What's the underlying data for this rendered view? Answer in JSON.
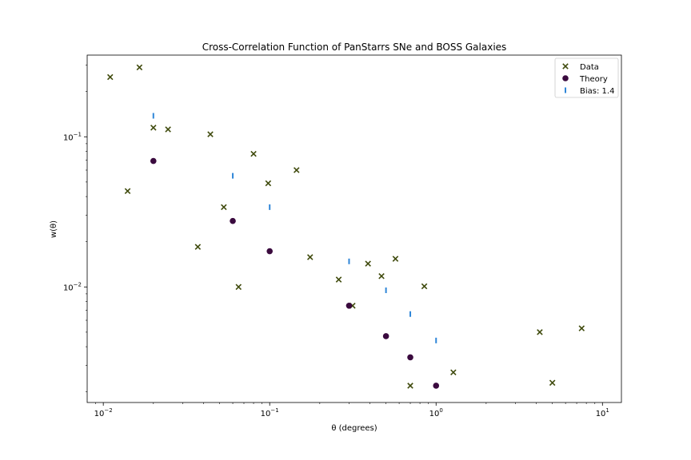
{
  "chart_data": {
    "type": "scatter",
    "title": "Cross-Correlation Function of PanStarrs SNe and BOSS Galaxies",
    "xlabel": "θ (degrees)",
    "ylabel": "w(θ)",
    "xscale": "log",
    "yscale": "log",
    "xlim": [
      0.008,
      13
    ],
    "ylim": [
      0.0017,
      0.35
    ],
    "grid": false,
    "legend_position": "top-right",
    "x_ticks": [
      {
        "value": 0.01,
        "base": "10",
        "exp": "−2"
      },
      {
        "value": 0.1,
        "base": "10",
        "exp": "−1"
      },
      {
        "value": 1,
        "base": "10",
        "exp": "0"
      },
      {
        "value": 10,
        "base": "10",
        "exp": "1"
      }
    ],
    "y_ticks": [
      {
        "value": 0.01,
        "base": "10",
        "exp": "−2"
      },
      {
        "value": 0.1,
        "base": "10",
        "exp": "−1"
      }
    ],
    "series": [
      {
        "name": "Data",
        "marker": "x",
        "color": "#3f4a0c",
        "x": [
          0.011,
          0.0165,
          0.02,
          0.0245,
          0.014,
          0.037,
          0.044,
          0.053,
          0.065,
          0.08,
          0.098,
          0.145,
          0.175,
          0.26,
          0.315,
          0.39,
          0.47,
          0.57,
          0.7,
          0.85,
          1.27,
          4.2,
          5.0,
          7.5
        ],
        "y": [
          0.25,
          0.29,
          0.115,
          0.112,
          0.0435,
          0.0185,
          0.104,
          0.034,
          0.01,
          0.077,
          0.049,
          0.06,
          0.0158,
          0.0112,
          0.0075,
          0.0143,
          0.0118,
          0.0154,
          0.0022,
          0.0101,
          0.0027,
          0.005,
          0.0023,
          0.0053
        ]
      },
      {
        "name": "Theory",
        "marker": "o",
        "color": "#3a0a3e",
        "x": [
          0.02,
          0.06,
          0.1,
          0.3,
          0.5,
          0.7,
          1.0
        ],
        "y": [
          0.069,
          0.0275,
          0.0173,
          0.0075,
          0.0047,
          0.0034,
          0.0022
        ]
      },
      {
        "name": "Bias: 1.4",
        "marker": "|",
        "color": "#2f86d8",
        "x": [
          0.02,
          0.06,
          0.1,
          0.3,
          0.5,
          0.7,
          1.0
        ],
        "y": [
          0.138,
          0.055,
          0.034,
          0.0148,
          0.0095,
          0.0066,
          0.0044
        ]
      }
    ]
  }
}
